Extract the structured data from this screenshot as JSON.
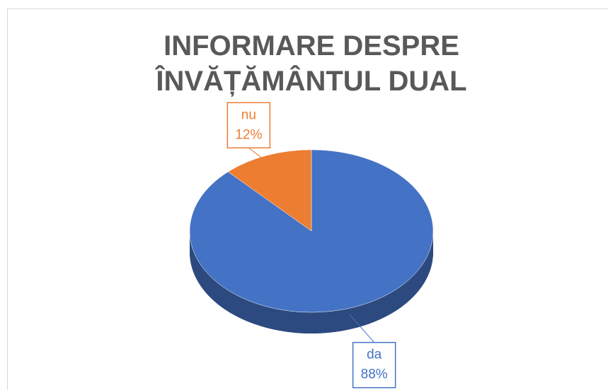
{
  "chart_data": {
    "type": "pie",
    "title": "INFORMARE DESPRE ÎNVĂȚĂMÂNTUL DUAL",
    "categories": [
      "da",
      "nu"
    ],
    "values": [
      88,
      12
    ],
    "value_labels": [
      "88%",
      "12%"
    ],
    "colors": [
      "#4472c4",
      "#ed7d31"
    ]
  }
}
